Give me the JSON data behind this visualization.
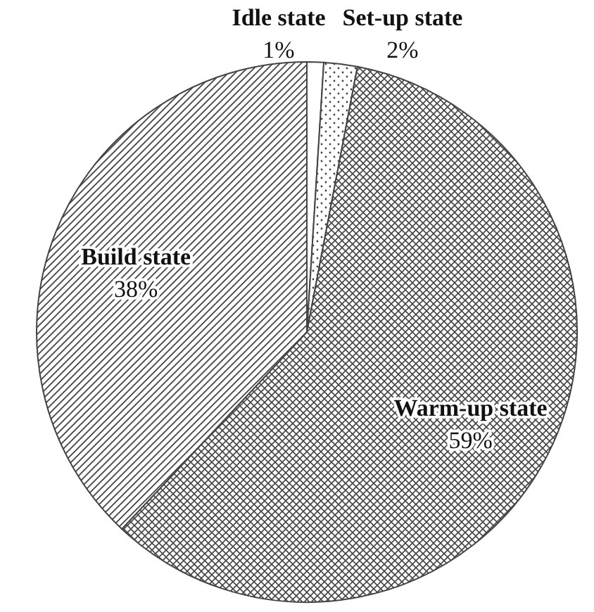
{
  "chart_data": {
    "type": "pie",
    "categories": [
      "Idle state",
      "Set-up state",
      "Warm-up state",
      "Build state"
    ],
    "values": [
      1,
      2,
      59,
      38
    ],
    "value_labels": [
      "1%",
      "2%",
      "59%",
      "38%"
    ],
    "colors": [
      "#444444",
      "#444444",
      "#444444",
      "#444444"
    ]
  }
}
